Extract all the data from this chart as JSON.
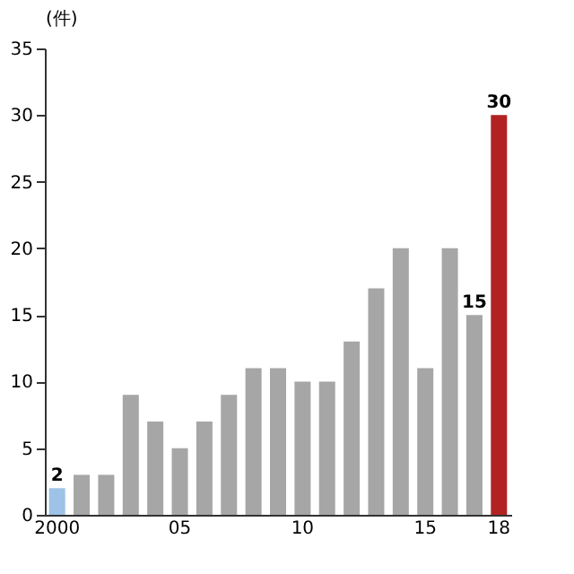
{
  "chart_data": {
    "type": "bar",
    "categories": [
      "2000",
      null,
      null,
      null,
      null,
      "05",
      null,
      null,
      null,
      null,
      "10",
      null,
      null,
      null,
      null,
      "15",
      null,
      null,
      "18"
    ],
    "values": [
      2,
      3,
      3,
      9,
      7,
      5,
      7,
      9,
      11,
      11,
      10,
      10,
      13,
      17,
      20,
      11,
      20,
      15,
      30
    ],
    "colors": [
      "#9dc3e6",
      "#a6a6a6",
      "#a6a6a6",
      "#a6a6a6",
      "#a6a6a6",
      "#a6a6a6",
      "#a6a6a6",
      "#a6a6a6",
      "#a6a6a6",
      "#a6a6a6",
      "#a6a6a6",
      "#a6a6a6",
      "#a6a6a6",
      "#a6a6a6",
      "#a6a6a6",
      "#a6a6a6",
      "#a6a6a6",
      "#a6a6a6",
      "#b22222"
    ],
    "value_labels": [
      "2",
      null,
      null,
      null,
      null,
      null,
      null,
      null,
      null,
      null,
      null,
      null,
      null,
      null,
      null,
      null,
      null,
      "15",
      "30"
    ],
    "ylabel": "(件)",
    "ylim": [
      0,
      35
    ],
    "yticks": [
      0,
      5,
      10,
      15,
      20,
      25,
      30,
      35
    ],
    "grid": false
  }
}
